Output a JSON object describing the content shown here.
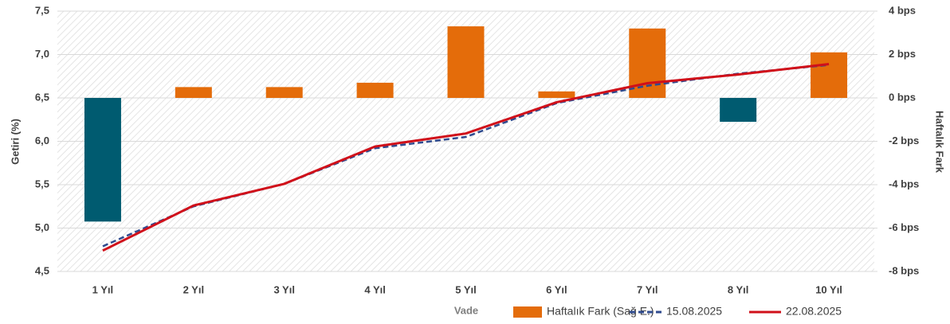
{
  "chart_data": {
    "type": "bar_line",
    "categories": [
      "1 Yıl",
      "2 Yıl",
      "3 Yıl",
      "4 Yıl",
      "5 Yıl",
      "6 Yıl",
      "7 Yıl",
      "8 Yıl",
      "10 Yıl"
    ],
    "xlabel": "Vade",
    "ylabel": "Getiri (%)",
    "y2label": "Haftalık Fark",
    "ylim": [
      4.5,
      7.5
    ],
    "yticks": [
      {
        "value": 4.5,
        "label": "4,5"
      },
      {
        "value": 5.0,
        "label": "5,0"
      },
      {
        "value": 5.5,
        "label": "5,5"
      },
      {
        "value": 6.0,
        "label": "6,0"
      },
      {
        "value": 6.5,
        "label": "6,5"
      },
      {
        "value": 7.0,
        "label": "7,0"
      },
      {
        "value": 7.5,
        "label": "7,5"
      }
    ],
    "y2lim": [
      -8,
      4
    ],
    "y2ticks": [
      {
        "value": -8,
        "label": "-8 bps"
      },
      {
        "value": -6,
        "label": "-6 bps"
      },
      {
        "value": -4,
        "label": "-4 bps"
      },
      {
        "value": -2,
        "label": "-2 bps"
      },
      {
        "value": 0,
        "label": "0 bps"
      },
      {
        "value": 2,
        "label": "2 bps"
      },
      {
        "value": 4,
        "label": "4 bps"
      }
    ],
    "grid": true,
    "series": [
      {
        "name": "Haftalık Fark (Sağ E.)",
        "type": "bar",
        "axis": "y2",
        "color": "#e46c0a",
        "negative_color": "#005b70",
        "values": [
          -5.7,
          0.5,
          0.5,
          0.7,
          3.3,
          0.3,
          3.2,
          -1.1,
          2.1
        ]
      },
      {
        "name": "15.08.2025",
        "type": "line",
        "dashed": true,
        "color": "#2f4b8f",
        "values": [
          4.79,
          5.25,
          5.51,
          5.92,
          6.05,
          6.44,
          6.64,
          6.78,
          6.88
        ]
      },
      {
        "name": "22.08.2025",
        "type": "line",
        "color": "#d0101a",
        "values": [
          4.74,
          5.26,
          5.51,
          5.94,
          6.09,
          6.45,
          6.67,
          6.77,
          6.89
        ]
      }
    ]
  }
}
